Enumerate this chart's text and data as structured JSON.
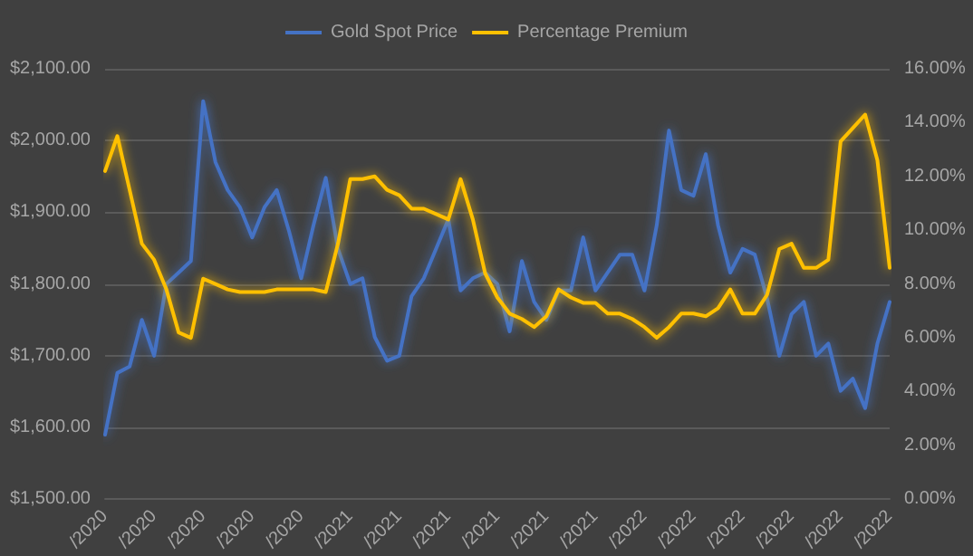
{
  "chart_data": {
    "type": "line",
    "legend": "top",
    "grid": "y",
    "marker": "none",
    "line_style": "solid",
    "categories": [
      "/2020",
      null,
      null,
      null,
      "/2020",
      null,
      null,
      null,
      "/2020",
      null,
      null,
      null,
      "/2020",
      null,
      null,
      null,
      "/2020",
      null,
      null,
      null,
      "/2021",
      null,
      null,
      null,
      "/2021",
      null,
      null,
      null,
      "/2021",
      null,
      null,
      null,
      "/2021",
      null,
      null,
      null,
      "/2021",
      null,
      null,
      null,
      "/2021",
      null,
      null,
      null,
      "/2022",
      null,
      null,
      null,
      "/2022",
      null,
      null,
      null,
      "/2022",
      null,
      null,
      null,
      "/2022",
      null,
      null,
      null,
      "/2022",
      null,
      null,
      null,
      "/2022"
    ],
    "ylim": [
      1500,
      2100
    ],
    "yticks": [
      {
        "value": 1500,
        "label": "$1,500.00"
      },
      {
        "value": 1600,
        "label": "$1,600.00"
      },
      {
        "value": 1700,
        "label": "$1,700.00"
      },
      {
        "value": 1800,
        "label": "$1,800.00"
      },
      {
        "value": 1900,
        "label": "$1,900.00"
      },
      {
        "value": 2000,
        "label": "$2,000.00"
      },
      {
        "value": 2100,
        "label": "$2,100.00"
      }
    ],
    "y2lim": [
      0,
      16
    ],
    "y2ticks": [
      {
        "value": 0,
        "label": "0.00%"
      },
      {
        "value": 2,
        "label": "2.00%"
      },
      {
        "value": 4,
        "label": "4.00%"
      },
      {
        "value": 6,
        "label": "6.00%"
      },
      {
        "value": 8,
        "label": "8.00%"
      },
      {
        "value": 10,
        "label": "10.00%"
      },
      {
        "value": 12,
        "label": "12.00%"
      },
      {
        "value": 14,
        "label": "14.00%"
      },
      {
        "value": 16,
        "label": "16.00%"
      }
    ],
    "series": [
      {
        "name": "Gold Spot Price",
        "color": "#4472c4",
        "values": [
          1590,
          1676,
          1685,
          1750,
          1700,
          1800,
          1816,
          1832,
          2055,
          1970,
          1931,
          1907,
          1865,
          1907,
          1931,
          1874,
          1808,
          1882,
          1948,
          1849,
          1800,
          1808,
          1726,
          1693,
          1700,
          1783,
          1808,
          1849,
          1890,
          1791,
          1808,
          1816,
          1800,
          1734,
          1832,
          1775,
          1750,
          1791,
          1791,
          1865,
          1791,
          1816,
          1841,
          1841,
          1791,
          1882,
          2014,
          1931,
          1923,
          1981,
          1882,
          1816,
          1849,
          1841,
          1780,
          1700,
          1758,
          1775,
          1700,
          1717,
          1651,
          1668,
          1627,
          1717,
          1775
        ]
      },
      {
        "name": "Percentage Premium",
        "color": "#ffc000",
        "axis": "y2",
        "values": [
          12.2,
          13.5,
          11.5,
          9.5,
          8.9,
          7.8,
          6.2,
          6.0,
          8.2,
          8.0,
          7.8,
          7.7,
          7.7,
          7.7,
          7.8,
          7.8,
          7.8,
          7.8,
          7.7,
          9.5,
          11.9,
          11.9,
          12.0,
          11.5,
          11.3,
          10.8,
          10.8,
          10.6,
          10.4,
          11.9,
          10.4,
          8.4,
          7.5,
          6.9,
          6.7,
          6.4,
          6.8,
          7.8,
          7.5,
          7.3,
          7.3,
          6.9,
          6.9,
          6.7,
          6.4,
          6.0,
          6.4,
          6.9,
          6.9,
          6.8,
          7.1,
          7.8,
          6.9,
          6.9,
          7.6,
          9.3,
          9.5,
          8.6,
          8.6,
          8.9,
          13.3,
          13.8,
          14.3,
          12.6,
          8.6
        ]
      }
    ]
  }
}
